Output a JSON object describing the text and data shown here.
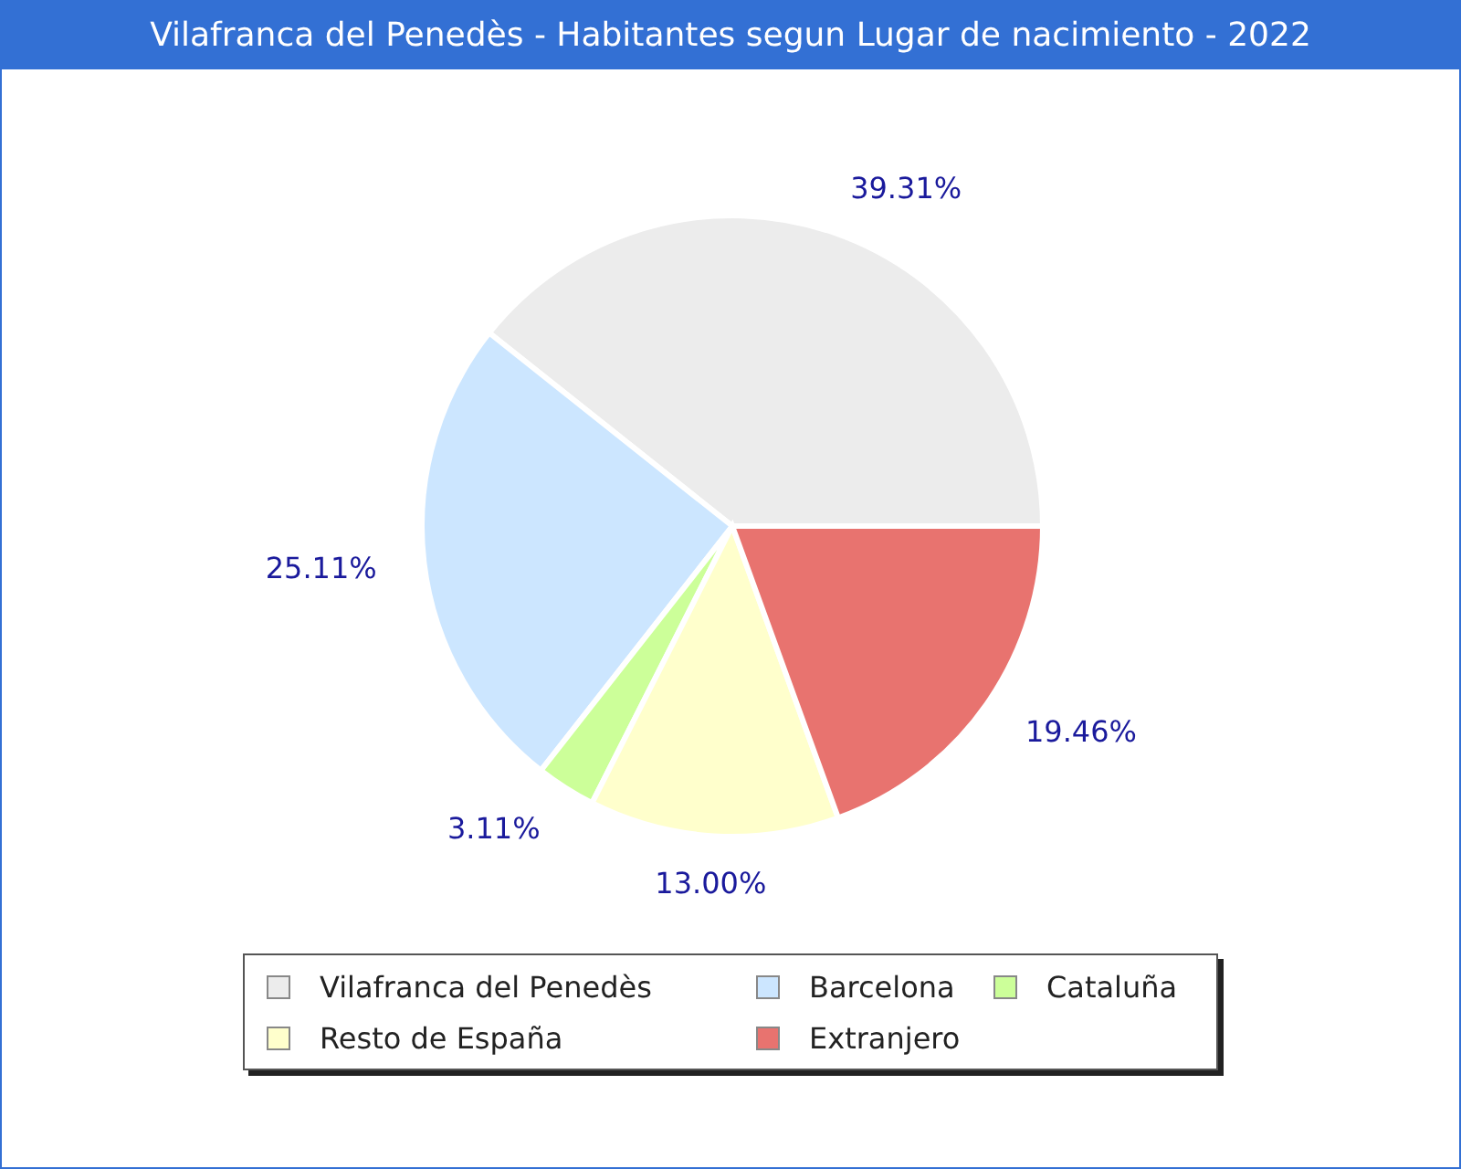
{
  "chart_data": {
    "type": "pie",
    "title": "Vilafranca del Penedès - Habitantes segun Lugar de nacimiento - 2022",
    "categories": [
      "Vilafranca del Penedès",
      "Barcelona",
      "Cataluña",
      "Resto de España",
      "Extranjero"
    ],
    "values": [
      39.31,
      25.11,
      3.11,
      13.0,
      19.46
    ],
    "colors": [
      "#ececec",
      "#cce6ff",
      "#ccff99",
      "#ffffcc",
      "#e8736f"
    ],
    "value_labels": [
      "39.31%",
      "25.11%",
      "3.11%",
      "13.00%",
      "19.46%"
    ],
    "legend": "bottom"
  }
}
